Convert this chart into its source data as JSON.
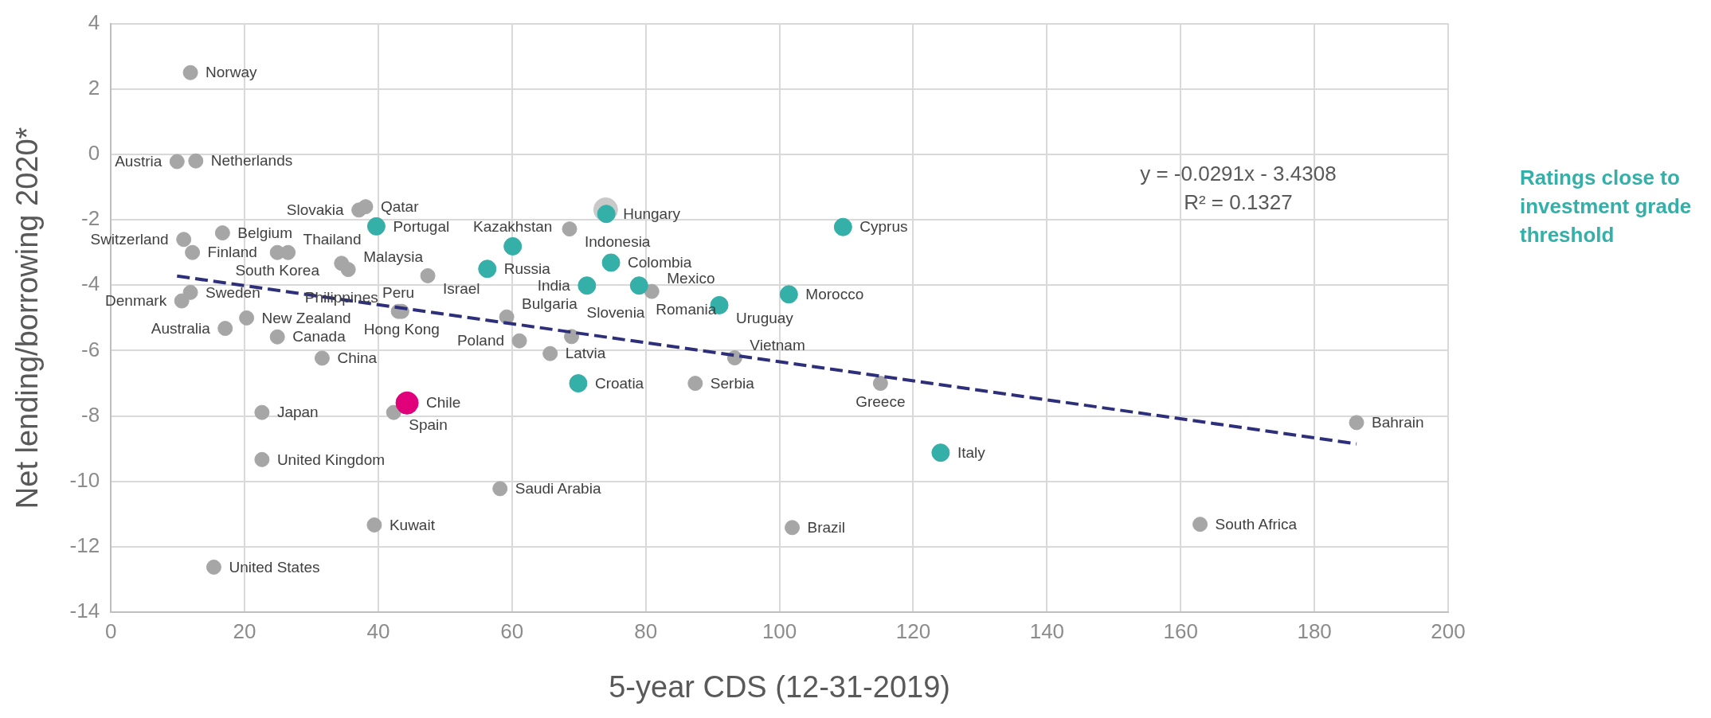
{
  "chart_data": {
    "type": "scatter",
    "xlabel": "5-year CDS (12-31-2019)",
    "ylabel": "Net lending/borrowing 2020*",
    "xlim": [
      0,
      200
    ],
    "xticks": [
      0,
      20,
      40,
      60,
      80,
      100,
      120,
      140,
      160,
      180,
      200
    ],
    "ylim": [
      -14,
      4
    ],
    "yticks": [
      -14,
      -12,
      -10,
      -8,
      -6,
      -4,
      -2,
      0,
      2,
      4
    ],
    "grid": true,
    "marker": "circle",
    "legend": "right",
    "annotations": [
      "y = -0.0291x - 3.4308",
      "R² = 0.1327"
    ],
    "series": [
      {
        "color": "#a6a6a6",
        "x": [
          11.9,
          9.9,
          12.7,
          37.1,
          38.1,
          16.7,
          10.9,
          12.2,
          24.9,
          26.5,
          34.5,
          35.5,
          47.4,
          11.9,
          10.6,
          20.3,
          17.1,
          24.9,
          31.6,
          43.0,
          43.5,
          59.2,
          61.1,
          65.7,
          68.9,
          22.6,
          42.3,
          22.6,
          58.2,
          39.4,
          15.4,
          68.6,
          80.9,
          93.3,
          87.4,
          115.1,
          101.9,
          162.9,
          186.3
        ],
        "values": [
          2.5,
          -0.22,
          -0.2,
          -1.7,
          -1.6,
          -2.4,
          -2.6,
          -3.0,
          -3.0,
          -3.0,
          -3.33,
          -3.52,
          -3.71,
          -4.22,
          -4.48,
          -5.0,
          -5.32,
          -5.58,
          -6.23,
          -4.8,
          -4.8,
          -4.97,
          -5.7,
          -6.09,
          -5.57,
          -7.89,
          -7.89,
          -9.33,
          -10.22,
          -11.33,
          -12.62,
          -2.28,
          -4.19,
          -6.22,
          -7.0,
          -7.0,
          -11.41,
          -11.31,
          -8.2
        ],
        "value_labels": [
          "Norway",
          "Austria",
          "Netherlands",
          "Slovakia",
          "Qatar",
          "Belgium",
          "Switzerland",
          "Finland",
          "South Korea",
          "Thailand",
          "Philippines",
          "Malaysia",
          "Israel",
          "Sweden",
          "Denmark",
          "New Zealand",
          "Australia",
          "Canada",
          "China",
          "Peru",
          "Hong Kong",
          "Bulgaria",
          "Poland",
          "Latvia",
          "Slovenia",
          "Japan",
          "Spain",
          "United Kingdom",
          "Saudi Arabia",
          "Kuwait",
          "United States",
          "Indonesia",
          "Mexico",
          "Vietnam",
          "Serbia",
          "Greece",
          "Brazil",
          "South Africa",
          "Bahrain"
        ]
      },
      {
        "color": "#c9c9c9",
        "x": [
          74.0
        ],
        "values": [
          -1.69
        ]
      },
      {
        "name": "Ratings close to investment grade threshold",
        "color": "#34b0a8",
        "x": [
          39.7,
          56.3,
          60.1,
          69.9,
          74.1,
          74.8,
          71.2,
          79.0,
          91.0,
          101.4,
          109.5,
          124.1
        ],
        "values": [
          -2.2,
          -3.5,
          -2.81,
          -7.0,
          -1.82,
          -3.31,
          -4.01,
          -4.01,
          -4.61,
          -4.28,
          -2.22,
          -9.12
        ],
        "value_labels": [
          "Portugal",
          "Russia",
          "Kazakhstan",
          "Croatia",
          "Hungary",
          "Colombia",
          "India",
          "Romania",
          "Uruguay",
          "Morocco",
          "Cyprus",
          "Italy"
        ]
      },
      {
        "color": "#e0007a",
        "x": [
          44.3
        ],
        "values": [
          -7.6
        ],
        "value_labels": [
          "Chile"
        ]
      },
      {
        "type": "line",
        "color": "#2e2f7a",
        "line_style": "dashed",
        "marker": "none",
        "x": [
          9.9,
          186.3
        ],
        "values": [
          -3.72,
          -8.85
        ]
      }
    ]
  }
}
